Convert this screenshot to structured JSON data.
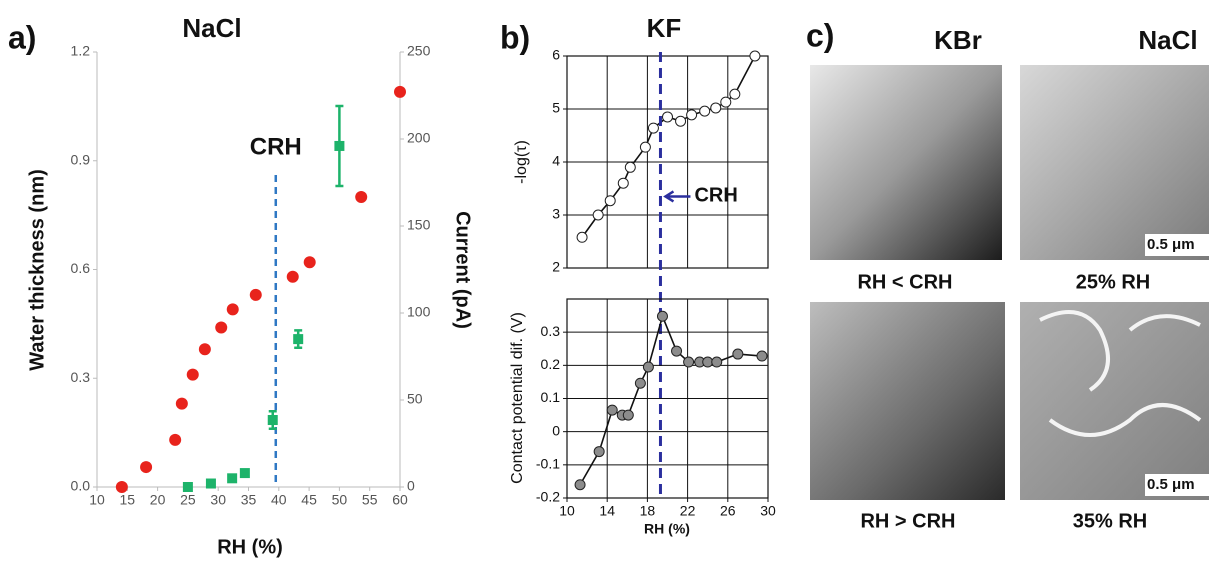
{
  "chart_data": [
    {
      "type": "scatter",
      "label": "a)",
      "title": "NaCl",
      "xlabel": "RH (%)",
      "ylabel": "Water thickness (nm)",
      "y2label": "Current (pA)",
      "xlim": [
        10,
        60
      ],
      "xticks": [
        10,
        15,
        20,
        25,
        30,
        35,
        40,
        45,
        50,
        55,
        60
      ],
      "ylim": [
        0,
        1.2
      ],
      "yticks": [
        {
          "value": 0,
          "label": "0.0"
        },
        0.3,
        0.6,
        0.9,
        {
          "value": 1.2,
          "label": "1.2"
        }
      ],
      "y2lim": [
        0,
        250
      ],
      "y2ticks": [
        0,
        50,
        100,
        150,
        200,
        250
      ],
      "series": [
        {
          "color": "#e8231c",
          "x": [
            14.1,
            18.1,
            22.9,
            24.0,
            25.8,
            27.8,
            30.5,
            32.4,
            36.2,
            42.3,
            45.1,
            53.6,
            60.0
          ],
          "values": [
            0.0,
            0.055,
            0.13,
            0.23,
            0.31,
            0.38,
            0.44,
            0.49,
            0.53,
            0.58,
            0.62,
            0.8,
            1.09
          ]
        },
        {
          "color": "#1db36a",
          "axis": "y2",
          "marker": "square",
          "x": [
            25.0,
            28.8,
            32.3,
            34.4,
            39.0,
            43.2,
            50.0
          ],
          "values": [
            0,
            2,
            5,
            8,
            38.5,
            85,
            196
          ],
          "errors": [
            null,
            null,
            null,
            null,
            5,
            5,
            23
          ]
        }
      ],
      "crh": {
        "text": "CRH",
        "x": 39.5
      }
    },
    {
      "type": "scatter",
      "label": "b)",
      "title": "KF",
      "ylabel": "-log(τ)",
      "xlim": [
        10,
        30
      ],
      "xgrid": [
        14,
        18,
        22,
        26
      ],
      "ylim": [
        2,
        6
      ],
      "yticks": [
        2,
        3,
        4,
        5,
        6
      ],
      "grid": true,
      "line": true,
      "series": [
        {
          "color": "#ffffff",
          "x": [
            11.5,
            13.1,
            14.3,
            15.6,
            16.3,
            17.8,
            18.6,
            20.0,
            21.3,
            22.4,
            23.7,
            24.8,
            25.8,
            26.7,
            28.7
          ],
          "values": [
            2.58,
            3.0,
            3.27,
            3.6,
            3.9,
            4.28,
            4.64,
            4.85,
            4.77,
            4.89,
            4.96,
            5.02,
            5.13,
            5.28,
            6.0
          ]
        }
      ],
      "crh": {
        "text": "CRH",
        "x": 19.3,
        "y": 3.35
      }
    },
    {
      "type": "scatter",
      "xlabel": "RH (%)",
      "ylabel": "Contact potential dif. (V)",
      "xlim": [
        10,
        30
      ],
      "xticks": [
        10,
        14,
        18,
        22,
        26,
        30
      ],
      "ylim": [
        -0.2,
        0.4
      ],
      "yticks": [
        -0.2,
        -0.1,
        0,
        0.1,
        0.2,
        0.3
      ],
      "grid": true,
      "line": true,
      "series": [
        {
          "color": "#8c8c8c",
          "x": [
            11.3,
            13.2,
            14.5,
            15.5,
            16.1,
            17.3,
            18.1,
            19.5,
            20.9,
            22.1,
            23.2,
            24.0,
            24.9,
            27.0,
            29.4
          ],
          "values": [
            -0.16,
            -0.06,
            0.065,
            0.05,
            0.05,
            0.146,
            0.195,
            0.348,
            0.243,
            0.21,
            0.21,
            0.21,
            0.21,
            0.234,
            0.228
          ]
        }
      ]
    }
  ],
  "images": {
    "label": "c)",
    "columns": [
      "KBr",
      "NaCl"
    ],
    "captions": [
      [
        "RH < CRH",
        "25% RH"
      ],
      [
        "RH > CRH",
        "35% RH"
      ]
    ],
    "scale_bar": "0.5 μm"
  }
}
